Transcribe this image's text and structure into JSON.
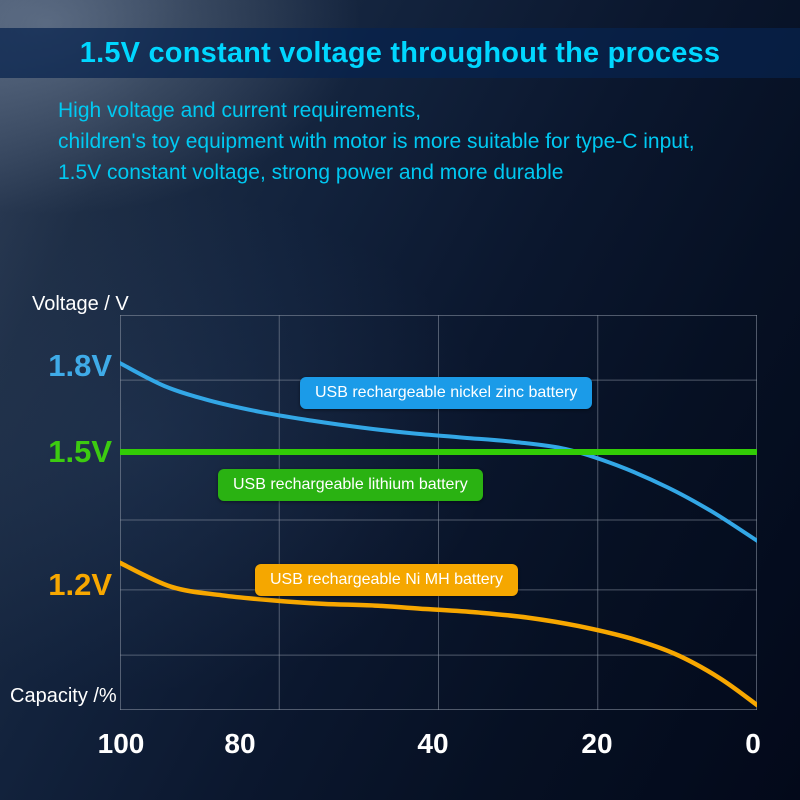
{
  "title": "1.5V constant voltage throughout the process",
  "subtitle": {
    "line1": "High voltage and current requirements,",
    "line2": "children's toy equipment with motor is more suitable for type-C input,",
    "line3": "1.5V constant voltage, strong power and more durable"
  },
  "chart": {
    "y_axis_label": "Voltage / V",
    "x_axis_label": "Capacity /%",
    "y_ticks": [
      {
        "label": "1.8V",
        "voltage": 1.8,
        "color": "#3fabe8"
      },
      {
        "label": "1.5V",
        "voltage": 1.5,
        "color": "#3ccb10"
      },
      {
        "label": "1.2V",
        "voltage": 1.2,
        "color": "#f7a700"
      }
    ],
    "x_ticks": [
      {
        "label": "100"
      },
      {
        "label": "80"
      },
      {
        "label": "40"
      },
      {
        "label": "20"
      },
      {
        "label": "0"
      }
    ],
    "grid_color": "#8b94a3",
    "title_color": "#00d7ff"
  },
  "chart_data": {
    "type": "line",
    "title": "1.5V constant voltage throughout the process",
    "xlabel": "Capacity /%",
    "ylabel": "Voltage / V",
    "xlim": [
      100,
      0
    ],
    "ylim": [
      0.8,
      1.9
    ],
    "x_reversed": true,
    "grid": true,
    "legend_position": "on-chart-badges",
    "series": [
      {
        "name": "USB rechargeable nickel zinc battery",
        "color": "#33a7e6",
        "x": [
          100,
          93,
          86,
          78,
          70,
          62,
          54,
          46,
          38,
          30,
          22,
          14,
          7,
          0
        ],
        "y": [
          1.81,
          1.73,
          1.68,
          1.64,
          1.61,
          1.585,
          1.565,
          1.55,
          1.535,
          1.51,
          1.47,
          1.42,
          1.365,
          1.3
        ]
      },
      {
        "name": "USB rechargeable lithium battery",
        "color": "#32cc06",
        "x": [
          100,
          0
        ],
        "y": [
          1.5,
          1.5
        ]
      },
      {
        "name": "USB rechargeable Ni MH battery",
        "color": "#f7a700",
        "x": [
          100,
          92,
          84,
          76,
          68,
          60,
          52,
          44,
          36,
          28,
          20,
          13,
          6,
          0
        ],
        "y": [
          1.25,
          1.195,
          1.17,
          1.155,
          1.145,
          1.14,
          1.13,
          1.12,
          1.105,
          1.08,
          1.045,
          1.0,
          0.93,
          0.85
        ]
      }
    ]
  }
}
